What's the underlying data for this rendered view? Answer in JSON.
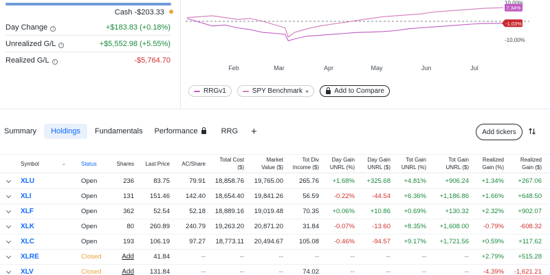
{
  "summary": {
    "cash_label": "Cash",
    "cash_value": "-$203.33",
    "cash_dot_color": "#e8a33d",
    "rows": [
      {
        "label": "Day Change",
        "value": "+$183.83 (+0.18%)",
        "tone": "pos"
      },
      {
        "label": "Unrealized G/L",
        "value": "+$5,552.98 (+5.55%)",
        "tone": "pos"
      },
      {
        "label": "Realized G/L",
        "value": "-$5,764.70",
        "tone": "neg"
      }
    ]
  },
  "chart_data": {
    "type": "line",
    "x_labels": [
      "Feb",
      "Mar",
      "Apr",
      "May",
      "Jun",
      "Jul"
    ],
    "y_tick_labels": [
      "10.00%",
      "-10.00%"
    ],
    "ylim": [
      -10,
      10
    ],
    "series": [
      {
        "name": "RRGv1",
        "color": "#c05bc2",
        "end_label": "-1.03%",
        "x": [
          0,
          4,
          8,
          12,
          16,
          20,
          24,
          28,
          31,
          32,
          34,
          38,
          42,
          46,
          50,
          54,
          58,
          62,
          66,
          70,
          74,
          78,
          82,
          86,
          90,
          94,
          100
        ],
        "y": [
          1.5,
          -0.5,
          -2.5,
          -2.0,
          -3.5,
          -4.5,
          -6.0,
          -6.5,
          -7.0,
          -10.5,
          -9.5,
          -8.0,
          -7.5,
          -7.0,
          -6.5,
          -6.0,
          -5.8,
          -5.5,
          -5.0,
          -4.0,
          -3.5,
          -3.0,
          -2.5,
          -2.0,
          -1.5,
          -1.2,
          -1.03
        ]
      },
      {
        "name": "SPY Benchmark",
        "color": "#d17ab8",
        "end_label": "7.34%",
        "x": [
          0,
          4,
          8,
          12,
          16,
          20,
          24,
          28,
          31,
          32,
          34,
          38,
          42,
          46,
          50,
          54,
          58,
          62,
          66,
          70,
          74,
          78,
          82,
          86,
          90,
          94,
          100
        ],
        "y": [
          2.0,
          2.5,
          3.0,
          2.0,
          1.0,
          1.5,
          0.0,
          -2.0,
          -3.5,
          -8.5,
          -6.0,
          -4.0,
          -2.5,
          -1.5,
          -0.5,
          0.5,
          1.5,
          2.5,
          3.0,
          3.5,
          4.0,
          5.0,
          5.5,
          6.0,
          6.5,
          7.0,
          7.34
        ]
      }
    ],
    "baseline": 0,
    "grid": false
  },
  "legend": {
    "rrg_label": "RRGv1",
    "spy_label": "SPY Benchmark",
    "close_icon": "×",
    "add_compare": "Add to Compare"
  },
  "tabs": {
    "summary": "Summary",
    "holdings": "Holdings",
    "fundamentals": "Fundamentals",
    "performance": "Performance",
    "rrg": "RRG",
    "plus": "+",
    "add_tickers": "Add tickers"
  },
  "table": {
    "headers": {
      "symbol": "Symbol",
      "status": "Status",
      "shares": "Shares",
      "last_price": "Last Price",
      "ac_share": "AC/Share",
      "total_cost_1": "Total Cost",
      "total_cost_2": "($)",
      "market_value_1": "Market",
      "market_value_2": "Value ($)",
      "tot_div_1": "Tot Div",
      "tot_div_2": "Income ($)",
      "day_gain_pct_1": "Day Gain",
      "day_gain_pct_2": "UNRL (%)",
      "day_gain_usd_1": "Day Gain",
      "day_gain_usd_2": "UNRL ($)",
      "tot_gain_pct_1": "Tot Gain",
      "tot_gain_pct_2": "UNRL (%)",
      "tot_gain_usd_1": "Tot Gain",
      "tot_gain_usd_2": "UNRL ($)",
      "realized_pct_1": "Realized",
      "realized_pct_2": "Gain (%)",
      "realized_usd_1": "Realized",
      "realized_usd_2": "Gain ($)"
    },
    "rows": [
      {
        "symbol": "XLU",
        "status": "Open",
        "shares": "236",
        "last_price": "83.75",
        "ac_share": "79.91",
        "total_cost": "18,858.76",
        "market_value": "19,765.00",
        "tot_div": "265.76",
        "day_pct": "+1.68%",
        "day_usd": "+325.68",
        "tot_pct": "+4.81%",
        "tot_usd": "+906.24",
        "real_pct": "+1.34%",
        "real_usd": "+267.06"
      },
      {
        "symbol": "XLI",
        "status": "Open",
        "shares": "131",
        "last_price": "151.46",
        "ac_share": "142.40",
        "total_cost": "18,654.40",
        "market_value": "19,841.26",
        "tot_div": "56.59",
        "day_pct": "-0.22%",
        "day_usd": "-44.54",
        "tot_pct": "+6.36%",
        "tot_usd": "+1,186.86",
        "real_pct": "+1.66%",
        "real_usd": "+648.50"
      },
      {
        "symbol": "XLF",
        "status": "Open",
        "shares": "362",
        "last_price": "52.54",
        "ac_share": "52.18",
        "total_cost": "18,889.16",
        "market_value": "19,019.48",
        "tot_div": "70.35",
        "day_pct": "+0.06%",
        "day_usd": "+10.86",
        "tot_pct": "+0.69%",
        "tot_usd": "+130.32",
        "real_pct": "+2.32%",
        "real_usd": "+902.07"
      },
      {
        "symbol": "XLK",
        "status": "Open",
        "shares": "80",
        "last_price": "260.89",
        "ac_share": "240.79",
        "total_cost": "19,263.20",
        "market_value": "20,871.20",
        "tot_div": "31.84",
        "day_pct": "-0.07%",
        "day_usd": "-13.60",
        "tot_pct": "+8.35%",
        "tot_usd": "+1,608.00",
        "real_pct": "-0.79%",
        "real_usd": "-608.32"
      },
      {
        "symbol": "XLC",
        "status": "Open",
        "shares": "193",
        "last_price": "106.19",
        "ac_share": "97.27",
        "total_cost": "18,773.11",
        "market_value": "20,494.67",
        "tot_div": "105.08",
        "day_pct": "-0.46%",
        "day_usd": "-94.57",
        "tot_pct": "+9.17%",
        "tot_usd": "+1,721.56",
        "real_pct": "+0.59%",
        "real_usd": "+117.62"
      },
      {
        "symbol": "XLRE",
        "status": "Closed",
        "shares": "Add",
        "last_price": "41.84",
        "ac_share": "--",
        "total_cost": "--",
        "market_value": "--",
        "tot_div": "--",
        "day_pct": "--",
        "day_usd": "--",
        "tot_pct": "--",
        "tot_usd": "--",
        "real_pct": "+2.79%",
        "real_usd": "+515.28"
      },
      {
        "symbol": "XLV",
        "status": "Closed",
        "shares": "Add",
        "last_price": "131.84",
        "ac_share": "--",
        "total_cost": "--",
        "market_value": "--",
        "tot_div": "74.02",
        "day_pct": "--",
        "day_usd": "--",
        "tot_pct": "--",
        "tot_usd": "--",
        "real_pct": "-4.39%",
        "real_usd": "-1,621.21"
      }
    ]
  }
}
